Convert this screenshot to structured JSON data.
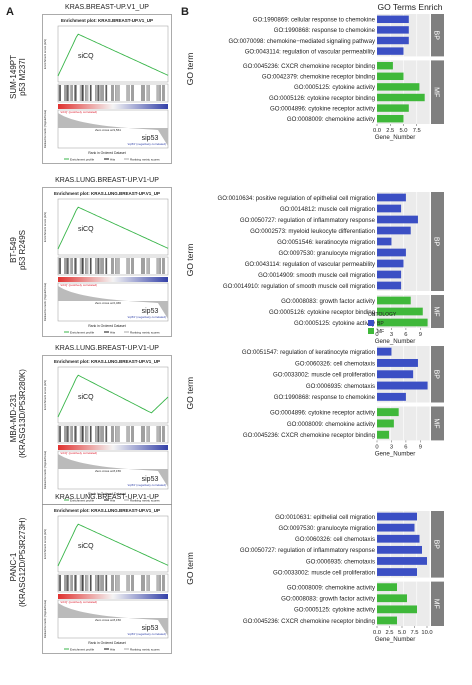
{
  "panels": {
    "A": "A",
    "B": "B"
  },
  "gsea": {
    "ylabel_es": "Enrichment score (ES)",
    "ylabel_rank": "Ranked list metric (Signal2Noise)",
    "xlabel": "Rank in Ordered Dataset",
    "legend": [
      "Enrichment profile",
      "Hits",
      "Ranking metric scores"
    ],
    "pos_label": "'siCQ' (positively correlated)",
    "neg_label": "'sip53' (negatively correlated)",
    "plots": [
      {
        "cell_line": "SUM-149PT",
        "mutation": "p53 M237I",
        "title": "KRAS.BREAST-UP.V1_UP",
        "inner_title": "Enrichment plot: KRAS.BREAST-UP.V1_UP",
        "left_label": "siCQ",
        "right_label": "sip53",
        "zero_cross": "Zero cross at 9,561",
        "curve": "peak-decline"
      },
      {
        "cell_line": "BT-549",
        "mutation": "p53 R249S",
        "title": "KRAS.LUNG.BREAST-UP.V1-UP",
        "inner_title": "Enrichment plot: KRAS.LUNG.BREAST-UP.V1_UP",
        "left_label": "siCQ",
        "right_label": "sip53",
        "zero_cross": "Zero cross at 6,466",
        "curve": "peak-decline"
      },
      {
        "cell_line": "MBA-MD-231",
        "mutation": "(KRASG13D/P53R280K)",
        "title": "KRAS.LUNG.BREAST-UP.V1-UP",
        "inner_title": "Enrichment plot: KRAS.LUNG.BREAST-UP.V1_UP",
        "left_label": "siCQ",
        "right_label": "sip53",
        "zero_cross": "Zero cross at 8,156",
        "curve": "peak-dip"
      },
      {
        "cell_line": "PANC-1",
        "mutation": "(KRASG12D/P53R273H)",
        "title": "KRAS.LUNG.BREAST-UP.V1-UP",
        "inner_title": "Enrichment plot: KRAS.LUNG.BREAST-UP.V1_UP",
        "left_label": "siCQ",
        "right_label": "sip53",
        "zero_cross": "Zero cross at 8,150",
        "curve": "peak-decline"
      }
    ]
  },
  "go": {
    "title": "GO Terms Enrich",
    "ylabel": "GO term",
    "xlabel": "Gene_Number",
    "legend_title": "ONTOLOGY",
    "legend": [
      {
        "name": "BP",
        "color": "#3b4fc4"
      },
      {
        "name": "MF",
        "color": "#3fb83a"
      }
    ],
    "colors": {
      "BP": "#3b4fc4",
      "MF": "#3fb83a",
      "strip": "#7f7f7f",
      "panel": "#ebebeb"
    }
  },
  "chart_data": [
    {
      "type": "bar",
      "orientation": "horizontal",
      "title": "GO Terms Enrich",
      "xlabel": "Gene_Number",
      "ylabel": "GO term",
      "xlim": [
        0,
        10
      ],
      "xticks": [
        "0.0",
        "2.5",
        "5.0",
        "7.5"
      ],
      "groups": [
        {
          "name": "BP",
          "categories": [
            "GO:1990869: cellular response to chemokine",
            "GO:1990868: response to chemokine",
            "GO:0070098: chemokine−mediated signaling pathway",
            "GO:0043114: regulation of vascular permeability"
          ],
          "values": [
            6,
            6,
            6,
            5
          ]
        },
        {
          "name": "MF",
          "categories": [
            "GO:0045236: CXCR chemokine receptor binding",
            "GO:0042379: chemokine receptor binding",
            "GO:0005125: cytokine activity",
            "GO:0005126: cytokine receptor binding",
            "GO:0004896: cytokine receptor activity",
            "GO:0008009: chemokine activity"
          ],
          "values": [
            3,
            5,
            8,
            9,
            6,
            5
          ]
        }
      ]
    },
    {
      "type": "bar",
      "orientation": "horizontal",
      "xlabel": "Gene_Number",
      "ylabel": "GO term",
      "xlim": [
        0,
        11
      ],
      "xticks": [
        "0",
        "3",
        "6",
        "9"
      ],
      "groups": [
        {
          "name": "BP",
          "categories": [
            "GO:0010634: positive regulation of epithelial cell migration",
            "GO:0014812: muscle cell migration",
            "GO:0050727: regulation of inflammatory response",
            "GO:0002573: myeloid leukocyte differentiation",
            "GO:0051546: keratinocyte migration",
            "GO:0097530: granulocyte migration",
            "GO:0043114: regulation of vascular permeability",
            "GO:0014909: smooth muscle cell migration",
            "GO:0014910: regulation of smooth muscle cell migration"
          ],
          "values": [
            6,
            5,
            8.5,
            7,
            3,
            6,
            5.5,
            5,
            5
          ]
        },
        {
          "name": "MF",
          "categories": [
            "GO:0008083: growth factor activity",
            "GO:0005126: cytokine receptor binding",
            "GO:0005125: cytokine activity"
          ],
          "values": [
            7,
            9.5,
            10.5
          ]
        }
      ]
    },
    {
      "type": "bar",
      "orientation": "horizontal",
      "xlabel": "Gene_Number",
      "ylabel": "GO term",
      "xlim": [
        0,
        11
      ],
      "xticks": [
        "0",
        "3",
        "6",
        "9"
      ],
      "groups": [
        {
          "name": "BP",
          "categories": [
            "GO:0051547: regulation of keratinocyte migration",
            "GO:0060326: cell chemotaxis",
            "GO:0033002: muscle cell proliferation",
            "GO:0006935: chemotaxis",
            "GO:1990868: response to chemokine"
          ],
          "values": [
            3,
            8.5,
            7.5,
            10.5,
            6
          ]
        },
        {
          "name": "MF",
          "categories": [
            "GO:0004896: cytokine receptor activity",
            "GO:0008009: chemokine activity",
            "GO:0045236: CXCR chemokine receptor binding"
          ],
          "values": [
            4.5,
            3.5,
            2.5
          ]
        }
      ]
    },
    {
      "type": "bar",
      "orientation": "horizontal",
      "xlabel": "Gene_Number",
      "ylabel": "GO term",
      "xlim": [
        0,
        10.6
      ],
      "xticks": [
        "0.0",
        "2.5",
        "5.0",
        "7.5",
        "10.0"
      ],
      "groups": [
        {
          "name": "BP",
          "categories": [
            "GO:0010631: epithelial cell migration",
            "GO:0097530: granulocyte migration",
            "GO:0060326: cell chemotaxis",
            "GO:0050727: regulation of inflammatory response",
            "GO:0006935: chemotaxis",
            "GO:0033002: muscle cell proliferation"
          ],
          "values": [
            8,
            7.5,
            8.5,
            9,
            10,
            8
          ]
        },
        {
          "name": "MF",
          "categories": [
            "GO:0008009: chemokine activity",
            "GO:0008083: growth factor activity",
            "GO:0005125: cytokine activity",
            "GO:0045236: CXCR chemokine receptor binding"
          ],
          "values": [
            4,
            6,
            8,
            4
          ]
        }
      ]
    }
  ]
}
